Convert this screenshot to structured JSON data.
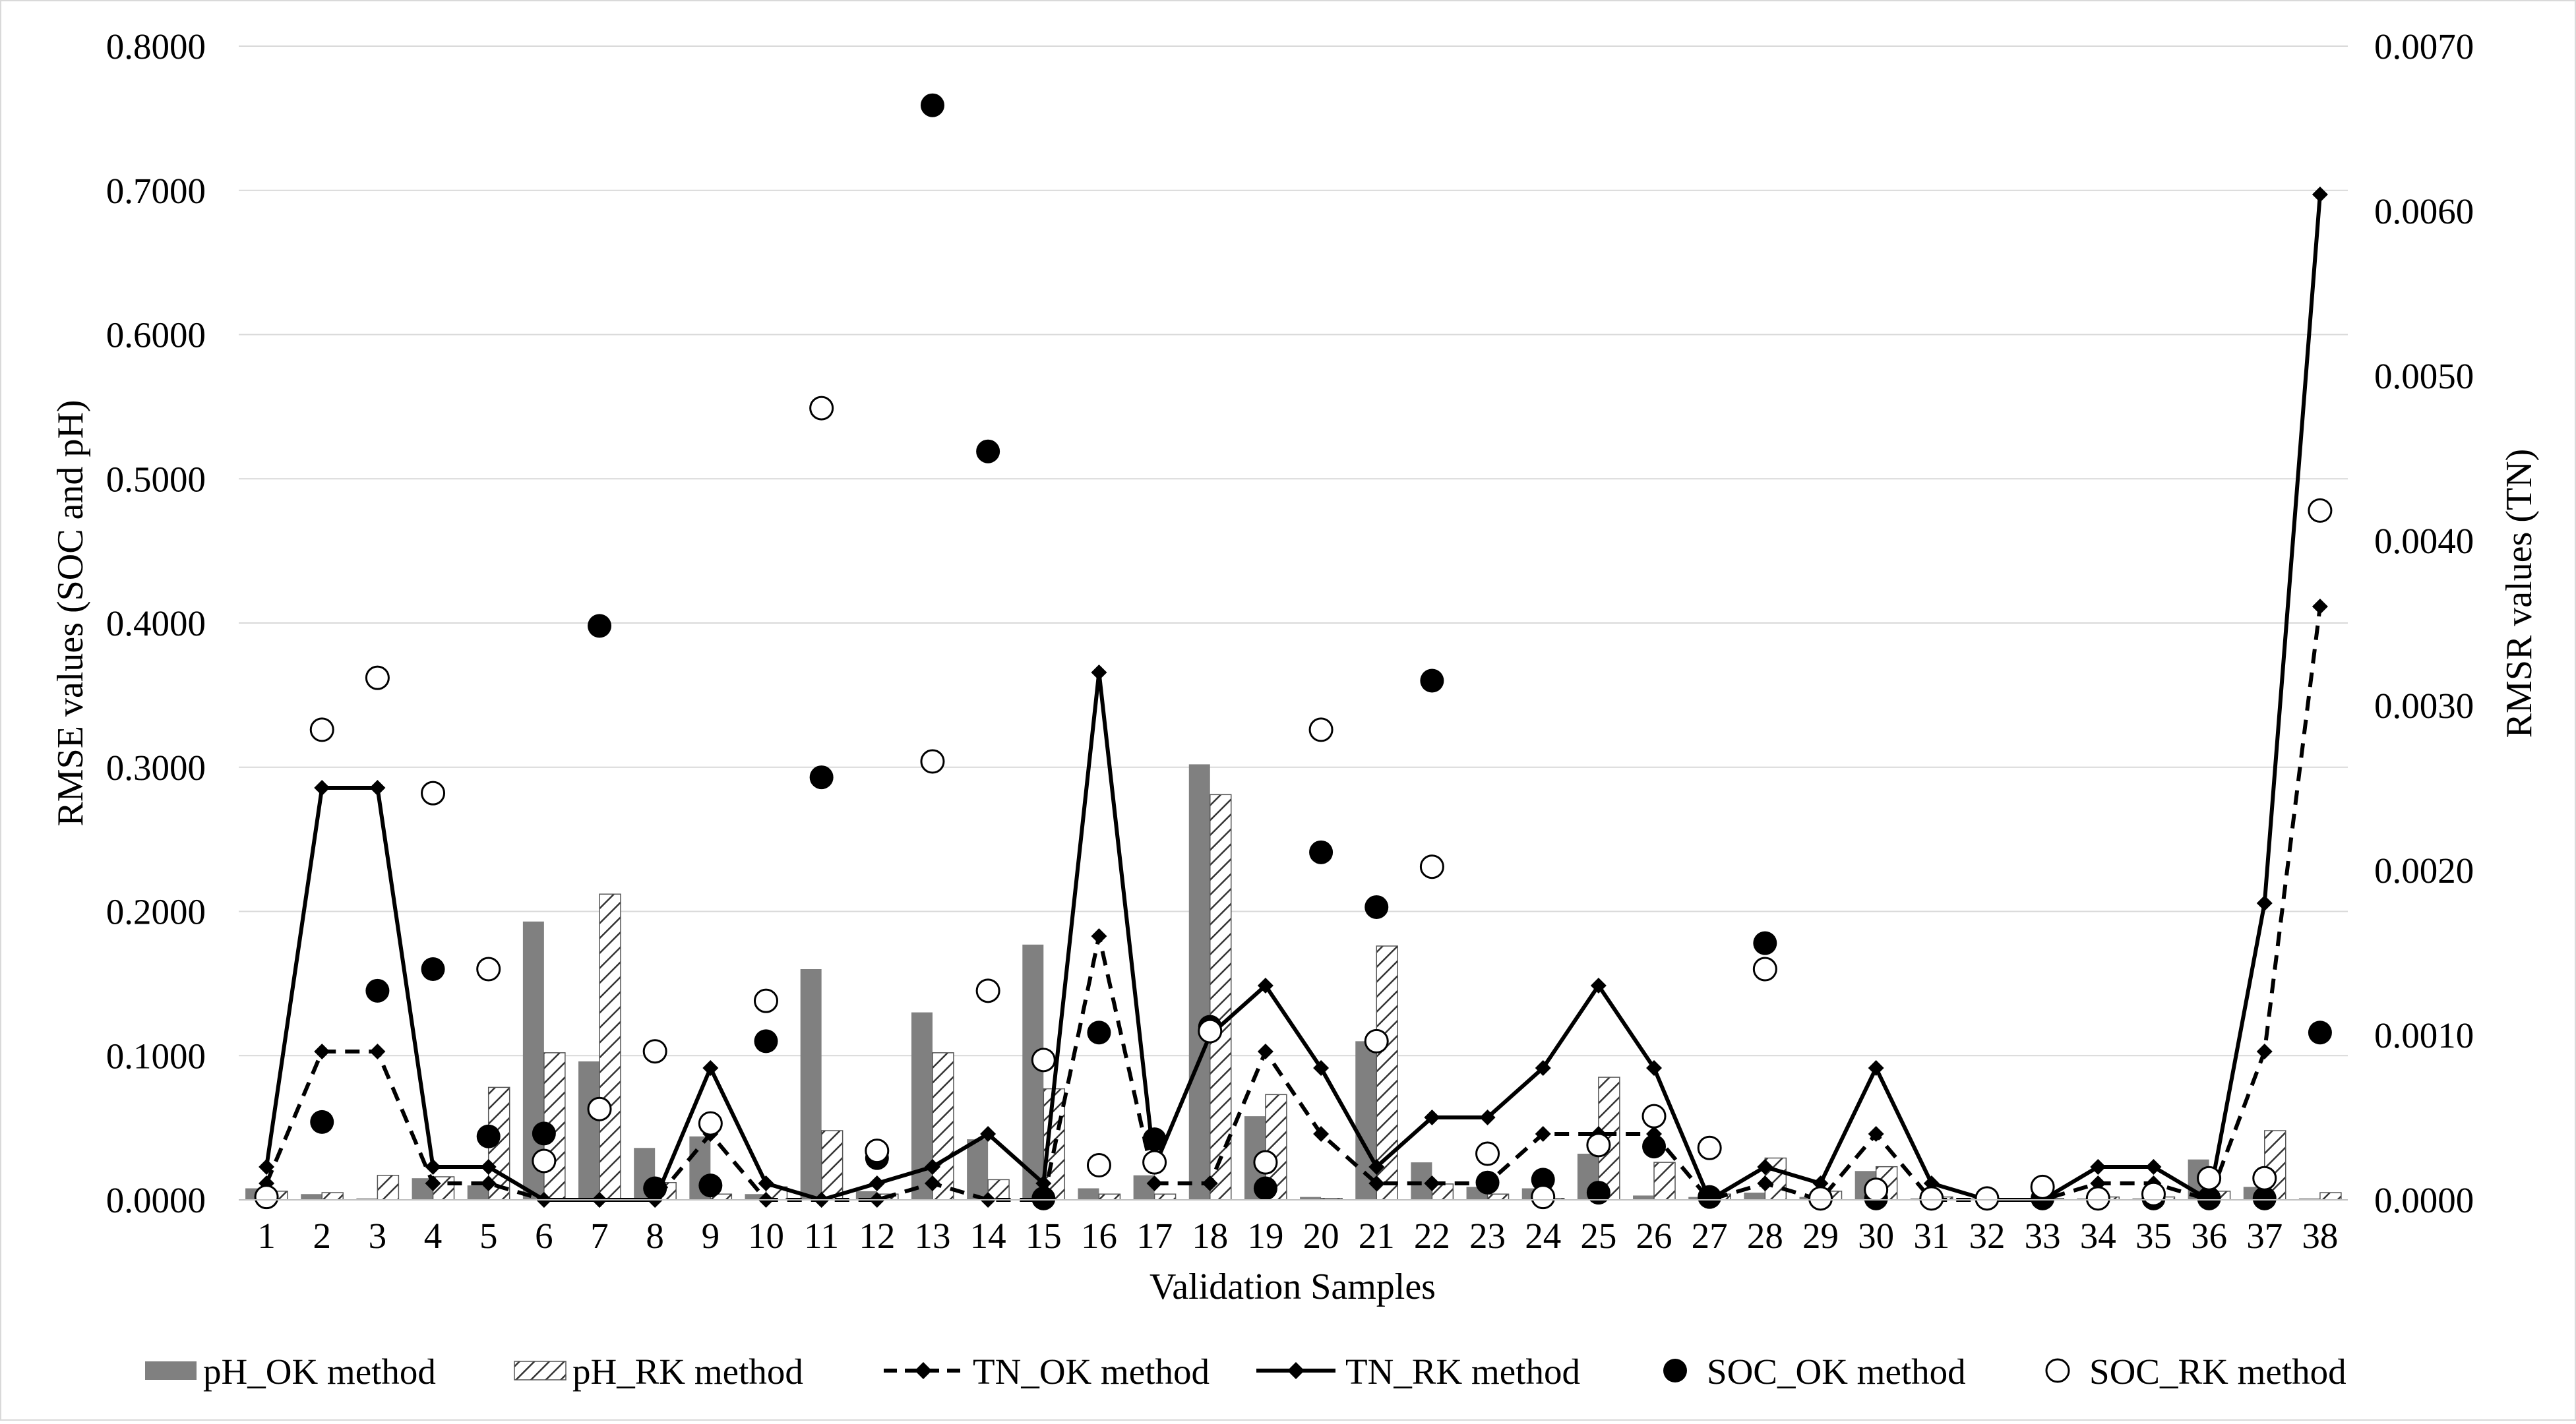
{
  "chart_data": {
    "type": "bar+line+scatter",
    "xlabel": "Validation Samples",
    "ylabel_left": "RMSE values (SOC and pH)",
    "ylabel_right": "RMSR values (TN)",
    "ylim_left": [
      0,
      0.8
    ],
    "ylim_right": [
      0,
      0.007
    ],
    "grid": "horizontal",
    "legend_position": "bottom",
    "categories": [
      "1",
      "2",
      "3",
      "4",
      "5",
      "6",
      "7",
      "8",
      "9",
      "10",
      "11",
      "12",
      "13",
      "14",
      "15",
      "16",
      "17",
      "18",
      "19",
      "20",
      "21",
      "22",
      "23",
      "24",
      "25",
      "26",
      "27",
      "28",
      "29",
      "30",
      "31",
      "32",
      "33",
      "34",
      "35",
      "36",
      "37",
      "38"
    ],
    "left_ticks": [
      "0.0000",
      "0.1000",
      "0.2000",
      "0.3000",
      "0.4000",
      "0.5000",
      "0.6000",
      "0.7000",
      "0.8000"
    ],
    "right_ticks": [
      "0.0000",
      "0.0010",
      "0.0020",
      "0.0030",
      "0.0040",
      "0.0050",
      "0.0060",
      "0.0070"
    ],
    "series": [
      {
        "name": "pH_OK method",
        "kind": "bar",
        "axis": "left",
        "style": "solid-gray",
        "color": "#808080",
        "values": [
          0.008,
          0.004,
          0.001,
          0.015,
          0.01,
          0.193,
          0.096,
          0.036,
          0.044,
          0.004,
          0.16,
          0.006,
          0.13,
          0.042,
          0.177,
          0.008,
          0.017,
          0.302,
          0.058,
          0.002,
          0.11,
          0.026,
          0.009,
          0.008,
          0.032,
          0.003,
          0.002,
          0.005,
          0.002,
          0.02,
          0.001,
          0.001,
          0.001,
          0.001,
          0.001,
          0.028,
          0.009,
          0.001
        ]
      },
      {
        "name": "pH_RK method",
        "kind": "bar",
        "axis": "left",
        "style": "hatched",
        "color": "#000000",
        "values": [
          0.006,
          0.005,
          0.017,
          0.016,
          0.078,
          0.102,
          0.212,
          0.012,
          0.004,
          0.009,
          0.048,
          0.004,
          0.102,
          0.014,
          0.077,
          0.004,
          0.004,
          0.281,
          0.073,
          0.001,
          0.176,
          0.011,
          0.004,
          0.001,
          0.085,
          0.026,
          0.004,
          0.029,
          0.006,
          0.023,
          0.002,
          0.001,
          0.001,
          0.002,
          0.002,
          0.006,
          0.048,
          0.005
        ]
      },
      {
        "name": "TN_OK method",
        "kind": "line",
        "axis": "right",
        "style": "dashed-diamond",
        "color": "#000000",
        "values": [
          0.0001,
          0.0009,
          0.0009,
          0.0001,
          0.0001,
          0.0,
          0.0,
          0.0,
          0.0004,
          0.0,
          0.0,
          0.0,
          0.0001,
          0.0,
          0.0,
          0.0016,
          0.0001,
          0.0001,
          0.0009,
          0.0004,
          0.0001,
          0.0001,
          0.0001,
          0.0004,
          0.0004,
          0.0004,
          0.0,
          0.0001,
          0.0,
          0.0004,
          0.0,
          0.0,
          0.0,
          0.0001,
          0.0001,
          0.0,
          0.0009,
          0.0036
        ]
      },
      {
        "name": "TN_RK method",
        "kind": "line",
        "axis": "right",
        "style": "solid-diamond",
        "color": "#000000",
        "values": [
          0.0002,
          0.0025,
          0.0025,
          0.0002,
          0.0002,
          0.0,
          0.0,
          0.0,
          0.0008,
          0.0001,
          0.0,
          0.0001,
          0.0002,
          0.0004,
          0.0001,
          0.0032,
          0.0002,
          0.001,
          0.0013,
          0.0008,
          0.0002,
          0.0005,
          0.0005,
          0.0008,
          0.0013,
          0.0008,
          0.0,
          0.0002,
          0.0001,
          0.0008,
          0.0001,
          0.0,
          0.0,
          0.0002,
          0.0002,
          0.0,
          0.0018,
          0.0061
        ]
      },
      {
        "name": "SOC_OK method",
        "kind": "scatter",
        "axis": "left",
        "style": "filled-circle",
        "color": "#000000",
        "values": [
          0.002,
          0.054,
          0.145,
          0.16,
          0.044,
          0.046,
          0.398,
          0.008,
          0.01,
          0.11,
          0.293,
          0.029,
          0.759,
          0.519,
          0.001,
          0.116,
          0.042,
          0.12,
          0.008,
          0.241,
          0.203,
          0.36,
          0.012,
          0.014,
          0.005,
          0.037,
          0.002,
          0.178,
          0.001,
          0.001,
          0.001,
          0.001,
          0.001,
          0.001,
          0.001,
          0.001,
          0.001,
          0.116
        ]
      },
      {
        "name": "SOC_RK method",
        "kind": "scatter",
        "axis": "left",
        "style": "open-circle",
        "color": "#000000",
        "values": [
          0.002,
          0.326,
          0.362,
          0.282,
          0.16,
          0.027,
          0.063,
          0.103,
          0.053,
          0.138,
          0.549,
          0.034,
          0.304,
          0.145,
          0.097,
          0.024,
          0.026,
          0.117,
          0.026,
          0.326,
          0.11,
          0.231,
          0.032,
          0.002,
          0.038,
          0.058,
          0.036,
          0.16,
          0.001,
          0.007,
          0.001,
          0.001,
          0.009,
          0.001,
          0.004,
          0.015,
          0.015,
          0.478
        ]
      }
    ]
  }
}
